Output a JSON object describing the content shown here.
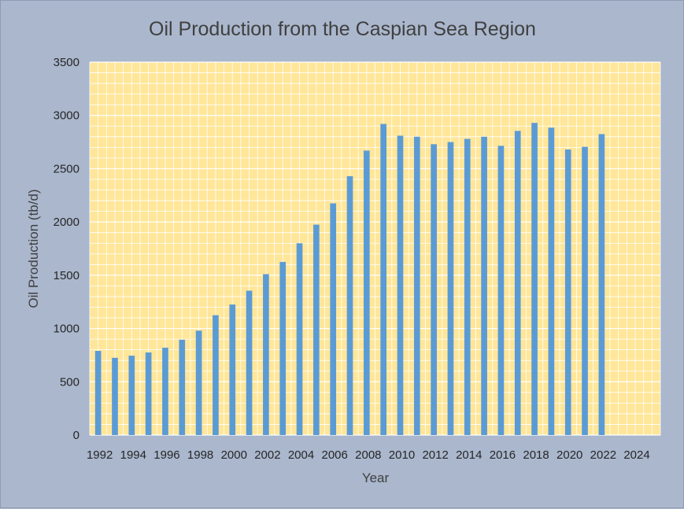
{
  "chart_data": {
    "type": "bar",
    "title": "Oil Production from the Caspian Sea Region",
    "xlabel": "Year",
    "ylabel": "Oil Production (tb/d)",
    "ylim": [
      0,
      3500
    ],
    "y_ticks": [
      0,
      500,
      1000,
      1500,
      2000,
      2500,
      3000,
      3500
    ],
    "xlim": [
      1992,
      2025
    ],
    "x_tick_labels": [
      "1992",
      "1994",
      "1996",
      "1998",
      "2000",
      "2002",
      "2004",
      "2006",
      "2008",
      "2010",
      "2012",
      "2014",
      "2016",
      "2018",
      "2020",
      "2022",
      "2024"
    ],
    "grid": true,
    "legend": "none",
    "series": [
      {
        "x": [
          1992,
          1993,
          1994,
          1995,
          1996,
          1997,
          1998,
          1999,
          2000,
          2001,
          2002,
          2003,
          2004,
          2005,
          2006,
          2007,
          2008,
          2009,
          2010,
          2011,
          2012,
          2013,
          2014,
          2015,
          2016,
          2017,
          2018,
          2019,
          2020,
          2021,
          2022
        ],
        "values": [
          790,
          725,
          745,
          775,
          820,
          895,
          980,
          1125,
          1225,
          1355,
          1510,
          1625,
          1800,
          1975,
          2175,
          2430,
          2670,
          2920,
          2810,
          2800,
          2730,
          2750,
          2780,
          2800,
          2715,
          2855,
          2930,
          2885,
          2680,
          2705,
          2825
        ]
      }
    ],
    "colors": {
      "bar": "#5b9bd5",
      "plot_background": "#ffe699",
      "gridline": "#ffffff",
      "chart_background": "#aab7cd"
    }
  }
}
